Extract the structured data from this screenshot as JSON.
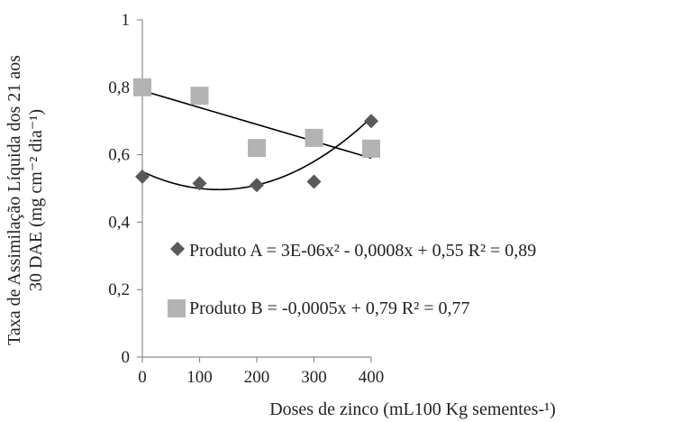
{
  "chart_data": {
    "type": "scatter",
    "xlabel": "Doses de zinco (mL100 Kg sementes-¹)",
    "ylabel_line1": "Taxa de Assimilação Líquida dos 21 aos",
    "ylabel_line2": "30 DAE (mg cm⁻² dia⁻¹)",
    "xlim": [
      0,
      400
    ],
    "ylim": [
      0,
      1
    ],
    "x_ticks": [
      0,
      100,
      200,
      300,
      400
    ],
    "y_ticks": [
      0,
      0.2,
      0.4,
      0.6,
      0.8,
      1
    ],
    "x_tick_labels": [
      "0",
      "100",
      "200",
      "300",
      "400"
    ],
    "y_tick_labels": [
      "0",
      "0,2",
      "0,4",
      "0,6",
      "0,8",
      "1"
    ],
    "grid": false,
    "legend_placement": "inside-bottom-left",
    "series": [
      {
        "name": "Produto A",
        "marker": "diamond",
        "color": "#595959",
        "x": [
          0,
          100,
          200,
          300,
          400
        ],
        "y": [
          0.535,
          0.515,
          0.51,
          0.52,
          0.7
        ],
        "trendline": {
          "type": "polynomial",
          "a": 3e-06,
          "b": -0.0008,
          "c": 0.55
        },
        "legend_label": "Produto A = 3E-06x² - 0,0008x + 0,55    R² = 0,89"
      },
      {
        "name": "Produto B",
        "marker": "square",
        "color": "#b3b3b3",
        "x": [
          0,
          100,
          200,
          300,
          400
        ],
        "y": [
          0.8,
          0.775,
          0.62,
          0.65,
          0.618
        ],
        "trendline": {
          "type": "linear",
          "a": -0.0005,
          "b": 0.79
        },
        "legend_label": "Produto B = -0,0005x + 0,79     R² = 0,77"
      }
    ]
  }
}
